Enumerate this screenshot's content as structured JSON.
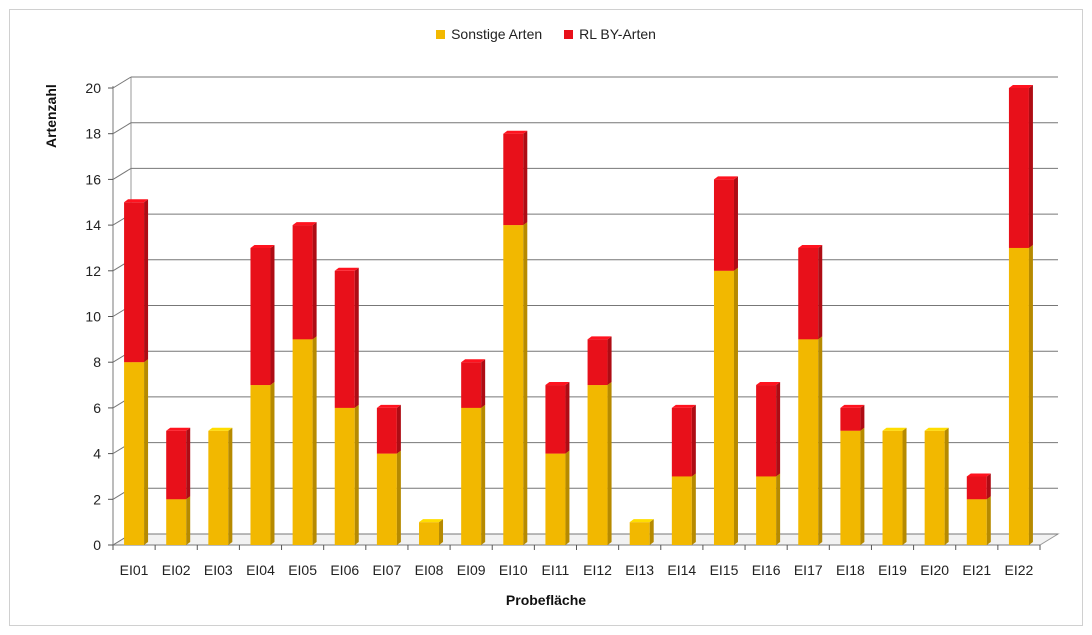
{
  "chart_data": {
    "type": "bar",
    "stacked": true,
    "xlabel": "Probefläche",
    "ylabel": "Artenzahl",
    "ylim": [
      0,
      20
    ],
    "yticks": [
      0,
      2,
      4,
      6,
      8,
      10,
      12,
      14,
      16,
      18,
      20
    ],
    "grid": true,
    "legend_position": "top",
    "categories": [
      "EI01",
      "EI02",
      "EI03",
      "EI04",
      "EI05",
      "EI06",
      "EI07",
      "EI08",
      "EI09",
      "EI10",
      "EI11",
      "EI12",
      "EI13",
      "EI14",
      "EI15",
      "EI16",
      "EI17",
      "EI18",
      "EI19",
      "EI20",
      "EI21",
      "EI22"
    ],
    "series": [
      {
        "name": "Sonstige Arten",
        "color": "#f2b800",
        "values": [
          8,
          2,
          5,
          7,
          9,
          6,
          4,
          1,
          6,
          14,
          4,
          7,
          1,
          3,
          12,
          3,
          9,
          5,
          5,
          5,
          2,
          13
        ]
      },
      {
        "name": "RL BY-Arten",
        "color": "#e8101a",
        "values": [
          7,
          3,
          0,
          6,
          5,
          6,
          2,
          0,
          2,
          4,
          3,
          2,
          0,
          3,
          4,
          4,
          4,
          1,
          0,
          0,
          1,
          7
        ]
      }
    ]
  }
}
